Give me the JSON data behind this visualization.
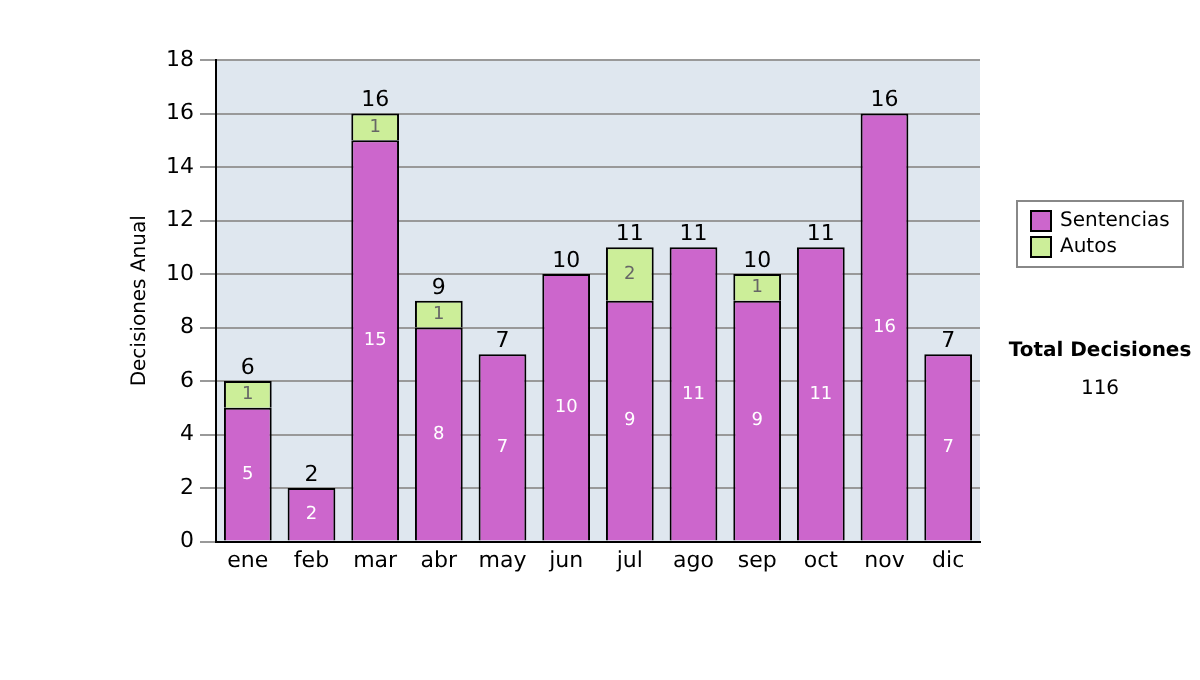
{
  "chart_data": {
    "type": "bar",
    "stacked": true,
    "ylabel": "Decisiones Anual",
    "categories": [
      "ene",
      "feb",
      "mar",
      "abr",
      "may",
      "jun",
      "jul",
      "ago",
      "sep",
      "oct",
      "nov",
      "dic"
    ],
    "series": [
      {
        "name": "Sentencias",
        "color": "#cc66cc",
        "values": [
          5,
          2,
          15,
          8,
          7,
          10,
          9,
          11,
          9,
          11,
          16,
          7
        ],
        "value_labels": [
          "5",
          "2",
          "15",
          "8",
          "7",
          "10",
          "9",
          "11",
          "9",
          "11",
          "16",
          "7"
        ]
      },
      {
        "name": "Autos",
        "color": "#ccee99",
        "values": [
          1,
          0,
          1,
          1,
          0,
          0,
          2,
          0,
          1,
          0,
          0,
          0
        ],
        "value_labels": [
          "1",
          null,
          "1",
          "1",
          null,
          null,
          "2",
          null,
          "1",
          null,
          null,
          null
        ]
      }
    ],
    "totals": [
      "6",
      "2",
      "16",
      "9",
      "7",
      "10",
      "11",
      "11",
      "10",
      "11",
      "16",
      "7"
    ],
    "ylim": [
      0,
      18
    ],
    "yticks": [
      0,
      2,
      4,
      6,
      8,
      10,
      12,
      14,
      16,
      18
    ],
    "grid": "y",
    "legend": "right",
    "annotations": [
      "Total Decisiones",
      "116"
    ]
  }
}
